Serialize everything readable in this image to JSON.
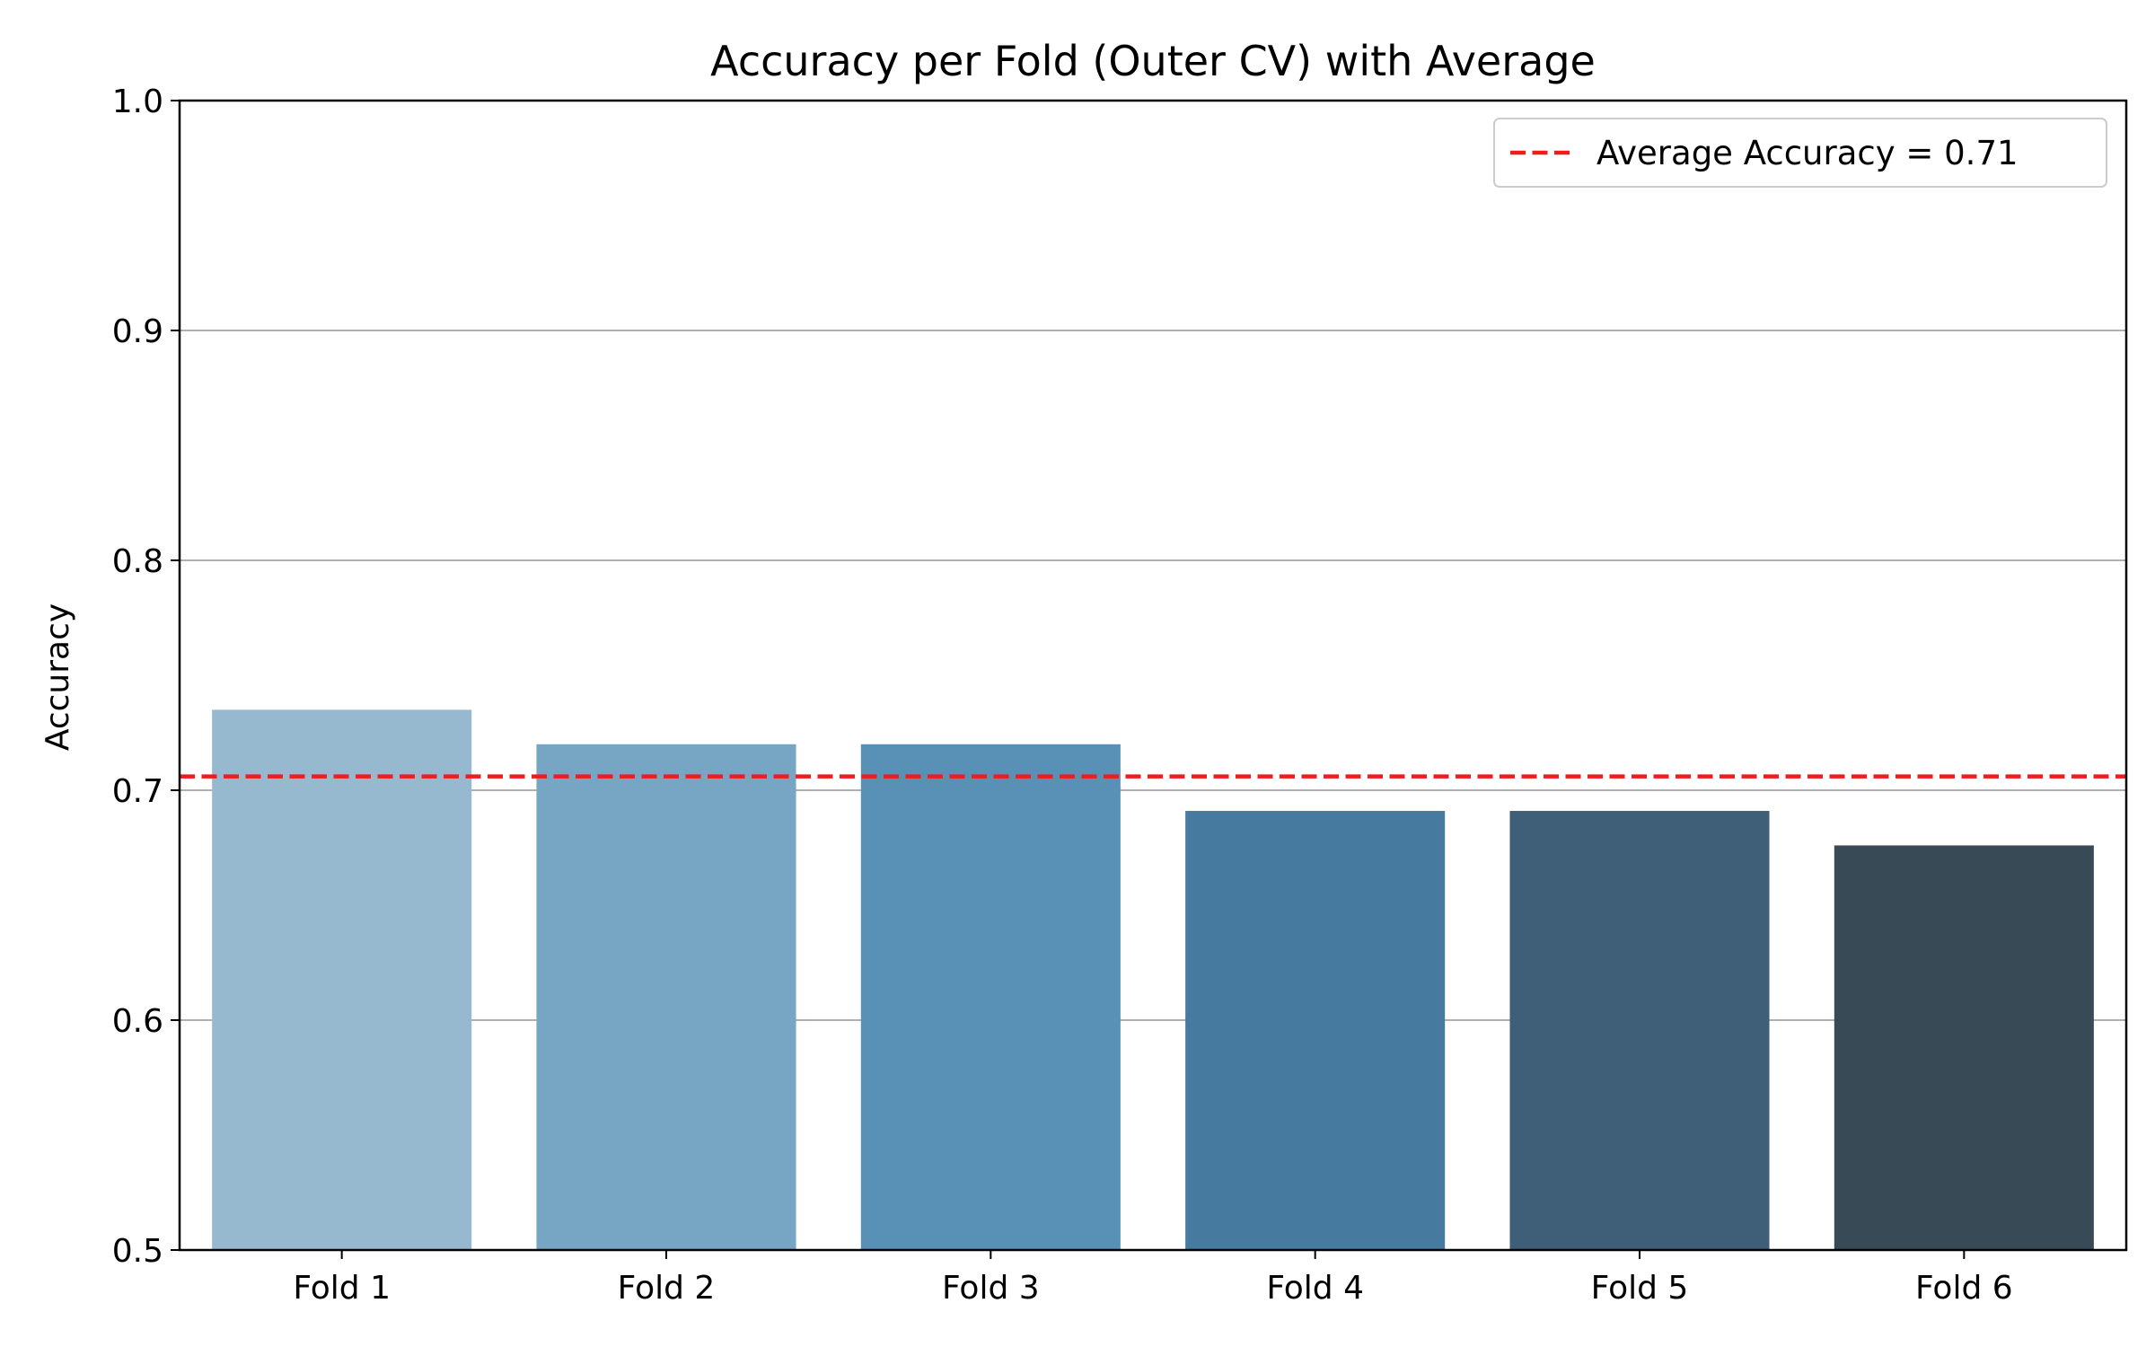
{
  "chart_data": {
    "type": "bar",
    "title": "Accuracy per Fold (Outer CV) with Average",
    "xlabel": "",
    "ylabel": "Accuracy",
    "categories": [
      "Fold 1",
      "Fold 2",
      "Fold 3",
      "Fold 4",
      "Fold 5",
      "Fold 6"
    ],
    "values": [
      0.735,
      0.72,
      0.72,
      0.691,
      0.691,
      0.676
    ],
    "bar_colors": [
      "#97b9d0",
      "#77a5c4",
      "#5990b6",
      "#467a9f",
      "#3e5f77",
      "#394a57"
    ],
    "ylim": [
      0.5,
      1.0
    ],
    "y_ticks": [
      "0.5",
      "0.6",
      "0.7",
      "0.8",
      "0.9",
      "1.0"
    ],
    "grid": "horizontal",
    "grid_color": "#b0b0b0",
    "reference_line": {
      "value": 0.706,
      "style": "dashed",
      "color": "#ee1c1c",
      "label": "Average Accuracy = 0.71"
    },
    "legend": {
      "placement": "top-right",
      "entries": [
        "Average Accuracy = 0.71"
      ]
    }
  }
}
